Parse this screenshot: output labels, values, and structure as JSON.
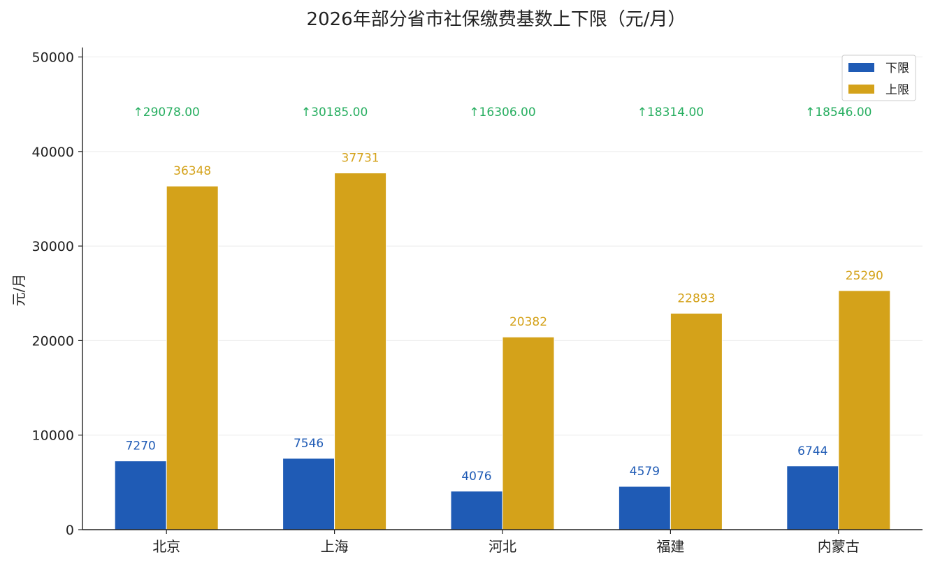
{
  "chart_data": {
    "type": "bar",
    "title": "2026年部分省市社保缴费基数上下限（元/月）",
    "xlabel": "",
    "ylabel": "元/月",
    "categories": [
      "北京",
      "上海",
      "河北",
      "福建",
      "内蒙古"
    ],
    "series": [
      {
        "name": "下限",
        "color": "#1f5bb5",
        "values": [
          7270,
          7546,
          4076,
          4579,
          6744
        ]
      },
      {
        "name": "上限",
        "color": "#d4a21a",
        "values": [
          36348,
          37731,
          20382,
          22893,
          25290
        ]
      }
    ],
    "difference_labels": [
      "↑29078.00",
      "↑30185.00",
      "↑16306.00",
      "↑18314.00",
      "↑18546.00"
    ],
    "difference_color": "#27ae60",
    "ylim": [
      0,
      51000
    ],
    "yticks": [
      0,
      10000,
      20000,
      30000,
      40000,
      50000
    ],
    "grid": true,
    "legend_position": "top-right"
  }
}
